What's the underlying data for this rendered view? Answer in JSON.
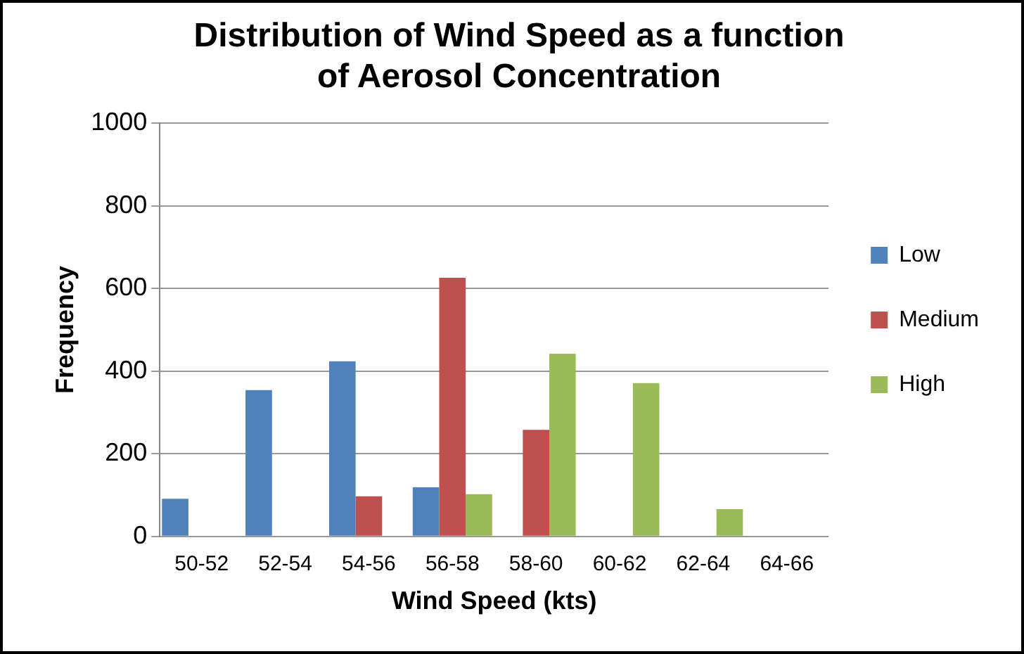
{
  "chart_data": {
    "type": "bar",
    "title": [
      "Distribution of Wind Speed as a function",
      "of Aerosol Concentration"
    ],
    "xlabel": "Wind Speed (kts)",
    "ylabel": "Frequency",
    "categories": [
      "50-52",
      "52-54",
      "54-56",
      "56-58",
      "58-60",
      "60-62",
      "62-64",
      "64-66"
    ],
    "series": [
      {
        "name": "Low",
        "color": "#4f81bd",
        "values": [
          91,
          354,
          424,
          119,
          0,
          0,
          0,
          0
        ]
      },
      {
        "name": "Medium",
        "color": "#c0504d",
        "values": [
          0,
          0,
          97,
          626,
          258,
          0,
          0,
          0
        ]
      },
      {
        "name": "High",
        "color": "#9bbb59",
        "values": [
          0,
          0,
          0,
          102,
          442,
          371,
          66,
          0
        ]
      }
    ],
    "ylim": [
      0,
      1000
    ],
    "yticks": [
      0,
      200,
      400,
      600,
      800,
      1000
    ],
    "grid": "y",
    "legend": "right"
  }
}
